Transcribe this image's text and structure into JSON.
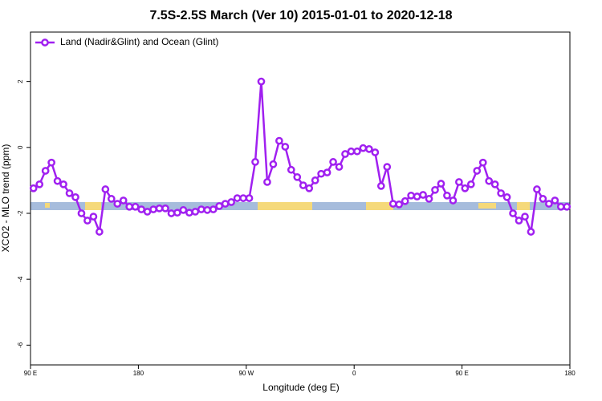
{
  "chart_data": {
    "type": "line",
    "title": "7.5S-2.5S March (Ver 10)   2015-01-01 to 2020-12-18",
    "x_label": "Longitude (deg E)",
    "y_label": "XCO2 - MLO trend (ppm)",
    "x": [
      92.5,
      97.5,
      102.5,
      107.5,
      112.5,
      117.5,
      122.5,
      127.5,
      132.5,
      137.5,
      142.5,
      147.5,
      152.5,
      157.5,
      162.5,
      167.5,
      172.5,
      177.5,
      182.5,
      187.5,
      192.5,
      197.5,
      202.5,
      207.5,
      212.5,
      217.5,
      222.5,
      227.5,
      232.5,
      237.5,
      242.5,
      247.5,
      252.5,
      257.5,
      262.5,
      267.5,
      272.5,
      277.5,
      282.5,
      287.5,
      292.5,
      297.5,
      302.5,
      307.5,
      312.5,
      317.5,
      322.5,
      327.5,
      332.5,
      337.5,
      342.5,
      347.5,
      352.5,
      357.5,
      362.5,
      367.5,
      372.5,
      377.5,
      382.5,
      387.5,
      392.5,
      397.5,
      402.5,
      407.5,
      412.5,
      417.5,
      422.5,
      427.5,
      432.5,
      437.5,
      442.5,
      447.5,
      452.5,
      457.5,
      462.5,
      467.5,
      472.5,
      477.5,
      482.5,
      487.5,
      492.5,
      497.5,
      502.5,
      507.5,
      512.5,
      517.5,
      522.5,
      527.5,
      532.5,
      537.5
    ],
    "series": [
      {
        "name": "Land (Nadir&Glint) and Ocean (Glint)",
        "color": "#a020f0",
        "values": [
          -1.24,
          -1.12,
          -0.71,
          -0.46,
          -1.02,
          -1.12,
          -1.39,
          -1.51,
          -2.0,
          -2.22,
          -2.1,
          -2.56,
          -1.27,
          -1.56,
          -1.71,
          -1.61,
          -1.8,
          -1.8,
          -1.88,
          -1.95,
          -1.88,
          -1.85,
          -1.85,
          -2.0,
          -1.98,
          -1.9,
          -1.98,
          -1.95,
          -1.88,
          -1.9,
          -1.88,
          -1.78,
          -1.71,
          -1.66,
          -1.54,
          -1.54,
          -1.54,
          -0.44,
          2.0,
          -1.05,
          -0.51,
          0.2,
          0.02,
          -0.68,
          -0.9,
          -1.15,
          -1.24,
          -1.0,
          -0.8,
          -0.76,
          -0.44,
          -0.59,
          -0.2,
          -0.12,
          -0.12,
          -0.02,
          -0.05,
          -0.15,
          -1.17,
          -0.59,
          -1.71,
          -1.73,
          -1.63,
          -1.46,
          -1.49,
          -1.44,
          -1.56,
          -1.29,
          -1.1,
          -1.46,
          -1.61,
          -1.05,
          -1.24,
          -1.12,
          -0.71,
          -0.46,
          -1.02,
          -1.12,
          -1.39,
          -1.51,
          -2.0,
          -2.22,
          -2.1,
          -2.56,
          -1.27,
          -1.56,
          -1.71,
          -1.61,
          -1.8,
          -1.8
        ]
      }
    ],
    "xlim": [
      90,
      540
    ],
    "xticks": [
      {
        "value": 90,
        "label": "90 E"
      },
      {
        "value": 180,
        "label": "180"
      },
      {
        "value": 270,
        "label": "90 W"
      },
      {
        "value": 360,
        "label": "0"
      },
      {
        "value": 450,
        "label": "90 E"
      },
      {
        "value": 540,
        "label": "180"
      }
    ],
    "ylim": [
      -6.6,
      3.5
    ],
    "yticks": [
      -6,
      -4,
      -2,
      0,
      2
    ],
    "legend": "top-left"
  }
}
